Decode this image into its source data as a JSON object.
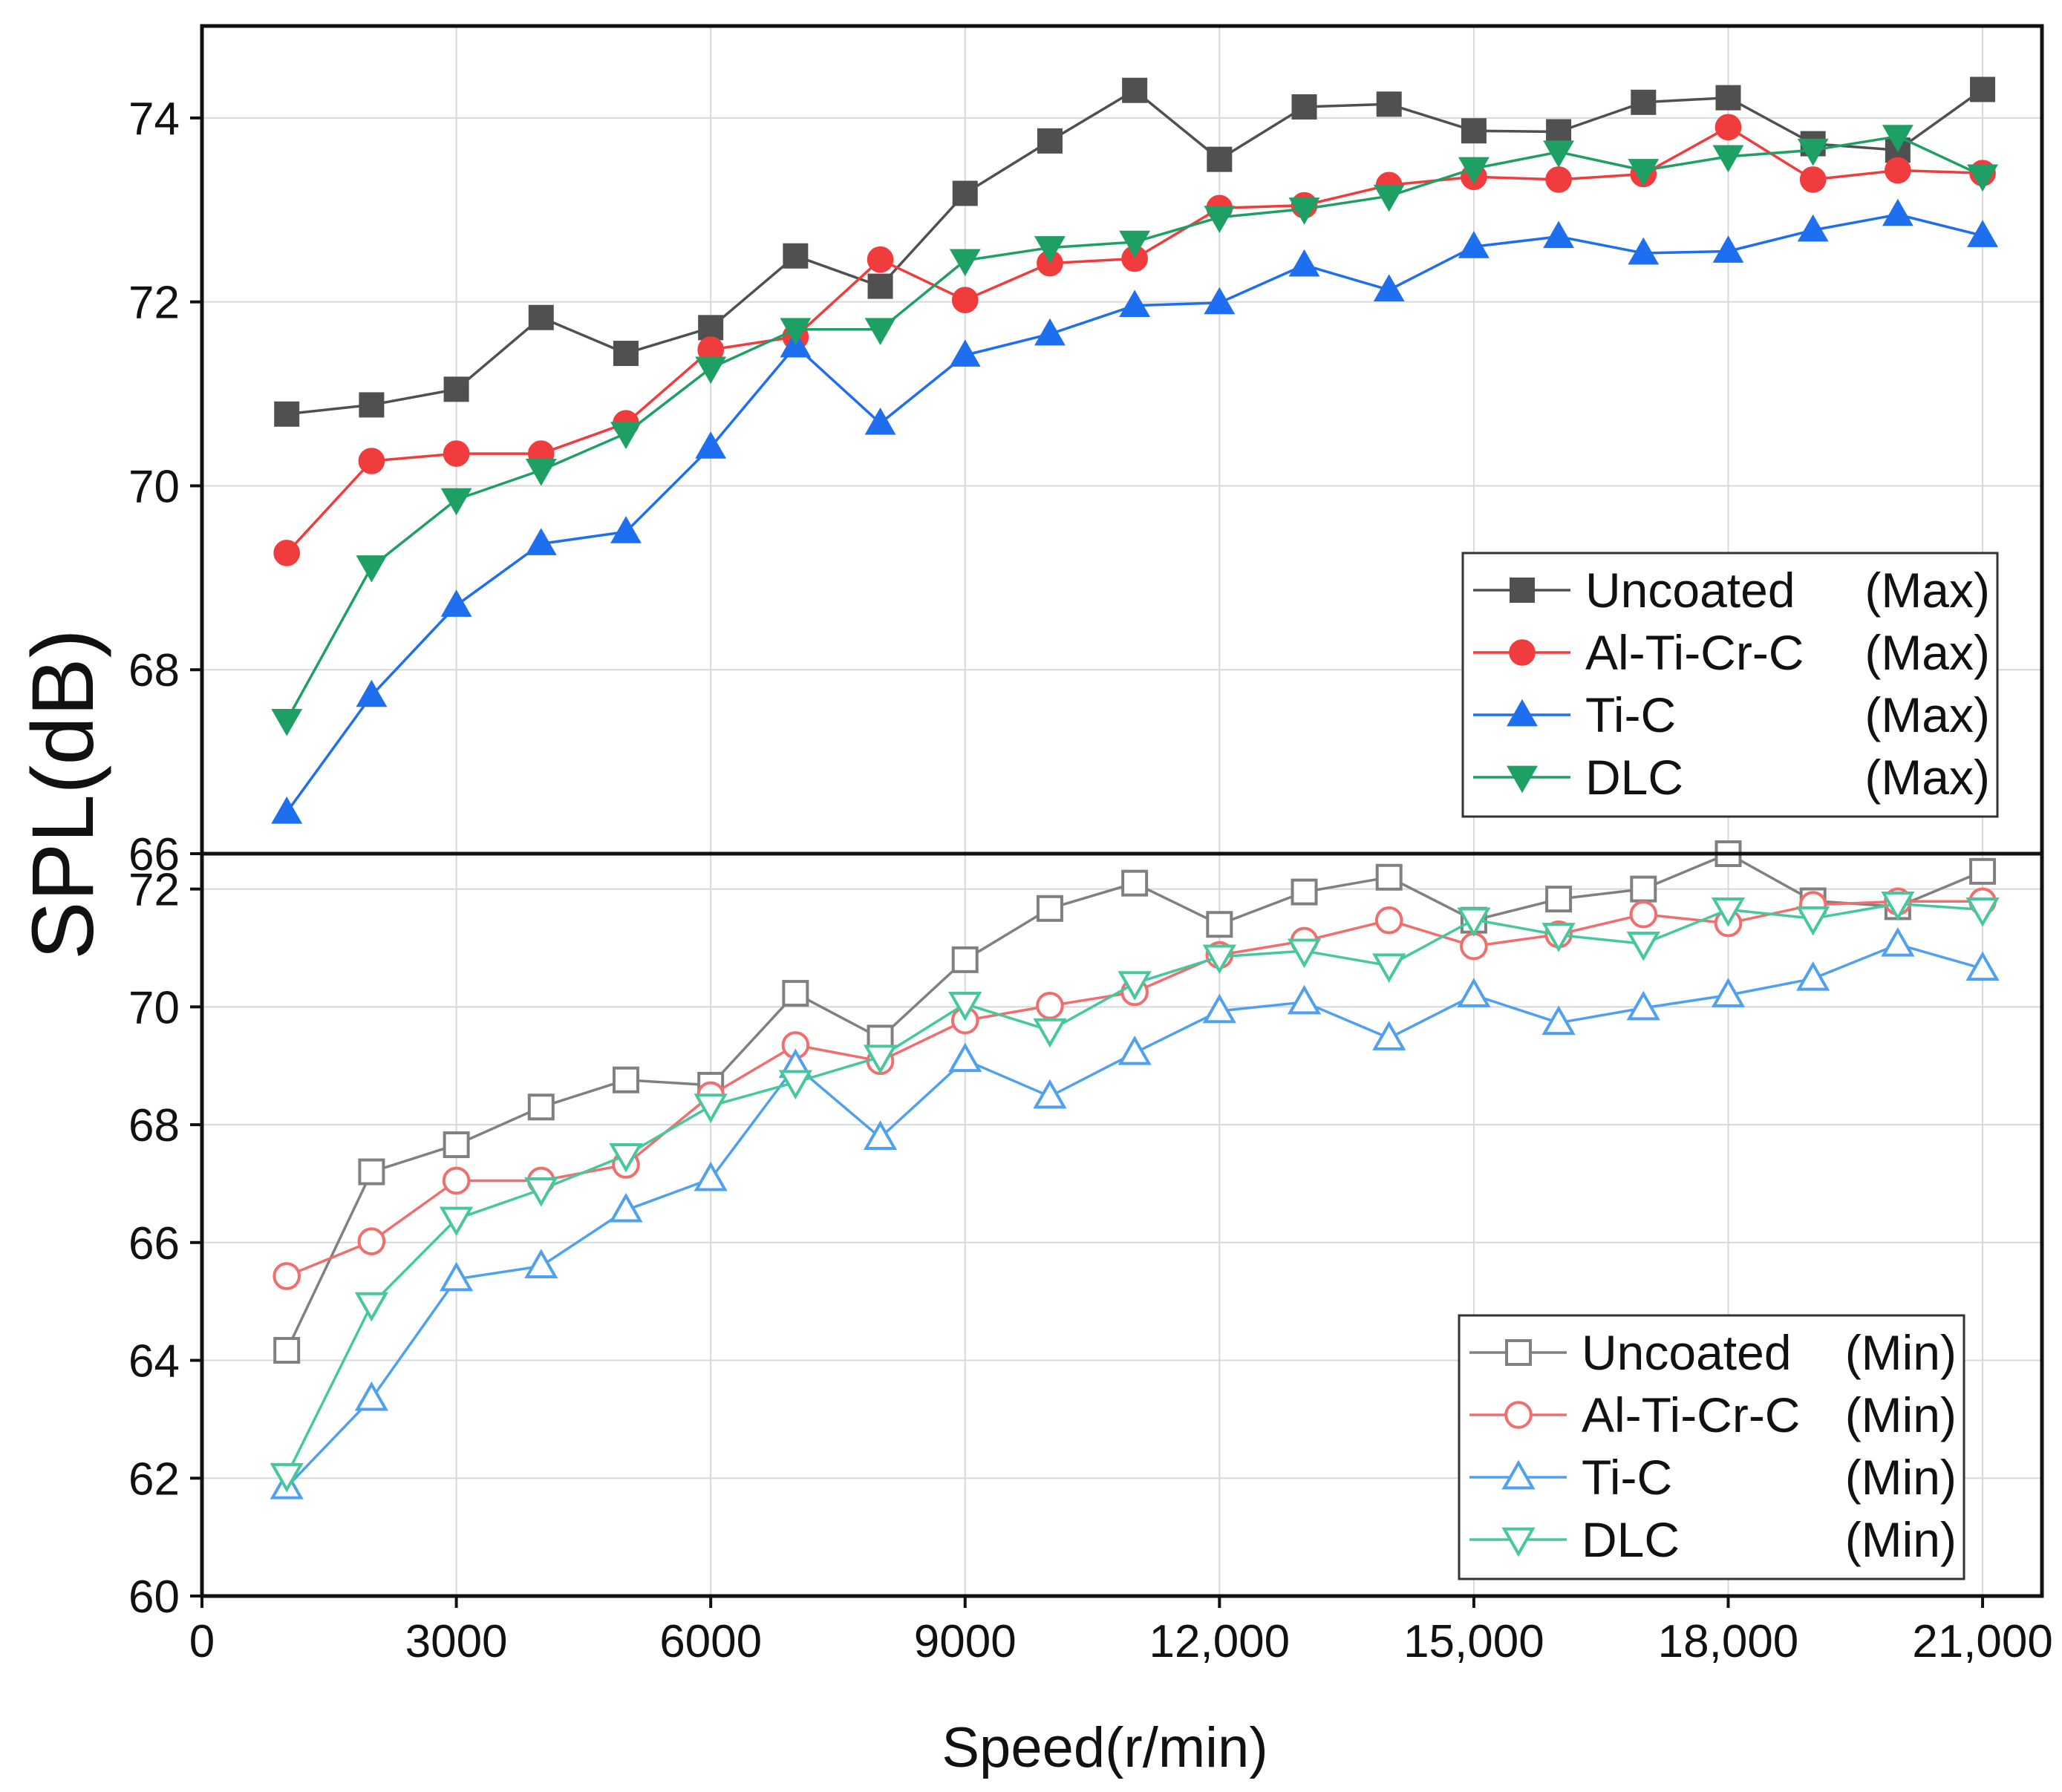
{
  "chart_data": {
    "type": "line",
    "x_title": "Speed(r/min)",
    "y_title": "SPL(dB)",
    "x_ticks": [
      {
        "value": 0,
        "label": "0"
      },
      {
        "value": 3000,
        "label": "3000"
      },
      {
        "value": 6000,
        "label": "6000"
      },
      {
        "value": 9000,
        "label": "9000"
      },
      {
        "value": 12000,
        "label": "12,000"
      },
      {
        "value": 15000,
        "label": "15,000"
      },
      {
        "value": 18000,
        "label": "18,000"
      },
      {
        "value": 21000,
        "label": "21,000"
      }
    ],
    "xlim": [
      0,
      21700
    ],
    "x": [
      1000,
      2000,
      3000,
      4000,
      5000,
      6000,
      7000,
      8000,
      9000,
      10000,
      11000,
      12000,
      13000,
      14000,
      15000,
      16000,
      17000,
      18000,
      19000,
      20000,
      21000
    ],
    "panels": [
      {
        "id": "max",
        "ylim": [
          66,
          75
        ],
        "y_ticks": [
          66,
          68,
          70,
          72,
          74
        ],
        "y_tick_labels": [
          "66",
          "68",
          "70",
          "72",
          "74"
        ],
        "legend_position": "bottom-right",
        "series": [
          {
            "name": "Uncoated",
            "tag": "(Max)",
            "color": "#505050",
            "marker": "square",
            "filled": true,
            "values": [
              70.78,
              70.88,
              71.05,
              71.83,
              71.44,
              71.72,
              72.5,
              72.17,
              73.18,
              73.75,
              74.3,
              73.55,
              74.12,
              74.15,
              73.86,
              73.85,
              74.17,
              74.22,
              73.72,
              73.65,
              74.31
            ]
          },
          {
            "name": "Al-Ti-Cr-C",
            "tag": "(Max)",
            "color": "#f03c3c",
            "marker": "circle",
            "filled": true,
            "values": [
              69.27,
              70.27,
              70.35,
              70.35,
              70.68,
              71.48,
              71.62,
              72.46,
              72.02,
              72.42,
              72.47,
              73.02,
              73.05,
              73.27,
              73.36,
              73.33,
              73.39,
              73.9,
              73.33,
              73.43,
              73.4
            ]
          },
          {
            "name": "Ti-C",
            "tag": "(Max)",
            "color": "#1e6ef0",
            "marker": "triangle-up",
            "filled": true,
            "values": [
              66.45,
              67.72,
              68.7,
              69.37,
              69.5,
              70.42,
              71.52,
              70.68,
              71.42,
              71.65,
              71.96,
              71.99,
              72.4,
              72.13,
              72.6,
              72.71,
              72.53,
              72.55,
              72.78,
              72.95,
              72.72
            ]
          },
          {
            "name": "DLC",
            "tag": "(Max)",
            "color": "#1ea064",
            "marker": "triangle-down",
            "filled": true,
            "values": [
              67.45,
              69.12,
              69.85,
              70.17,
              70.57,
              71.28,
              71.7,
              71.7,
              72.45,
              72.59,
              72.65,
              72.92,
              73.01,
              73.15,
              73.45,
              73.63,
              73.43,
              73.58,
              73.65,
              73.8,
              73.37
            ]
          }
        ]
      },
      {
        "id": "min",
        "ylim": [
          60,
          72.6
        ],
        "y_ticks": [
          60,
          62,
          64,
          66,
          68,
          70,
          72
        ],
        "y_tick_labels": [
          "60",
          "62",
          "64",
          "66",
          "68",
          "70",
          "72"
        ],
        "legend_position": "bottom-right",
        "series": [
          {
            "name": "Uncoated",
            "tag": "(Min)",
            "color": "#808080",
            "marker": "square",
            "filled": false,
            "values": [
              64.17,
              67.2,
              67.66,
              68.3,
              68.76,
              68.67,
              70.23,
              69.47,
              70.8,
              71.67,
              72.1,
              71.4,
              71.95,
              72.2,
              71.47,
              71.83,
              72.0,
              72.6,
              71.8,
              71.7,
              72.3
            ]
          },
          {
            "name": "Al-Ti-Cr-C",
            "tag": "(Min)",
            "color": "#f06e6e",
            "marker": "circle",
            "filled": false,
            "values": [
              65.43,
              66.02,
              67.05,
              67.05,
              67.32,
              68.5,
              69.35,
              69.08,
              69.77,
              70.02,
              70.25,
              70.88,
              71.12,
              71.47,
              71.03,
              71.23,
              71.57,
              71.42,
              71.73,
              71.79,
              71.79
            ]
          },
          {
            "name": "Ti-C",
            "tag": "(Min)",
            "color": "#50a0f0",
            "marker": "triangle-up",
            "filled": false,
            "values": [
              61.85,
              63.35,
              65.38,
              65.6,
              66.55,
              67.08,
              69.0,
              67.78,
              69.1,
              68.48,
              69.22,
              69.93,
              70.08,
              69.47,
              70.2,
              69.73,
              69.98,
              70.2,
              70.48,
              71.06,
              70.65
            ]
          },
          {
            "name": "DLC",
            "tag": "(Min)",
            "color": "#46c89a",
            "marker": "triangle-down",
            "filled": false,
            "values": [
              62.05,
              64.95,
              66.4,
              66.9,
              67.48,
              68.32,
              68.72,
              69.15,
              70.05,
              69.6,
              70.4,
              70.85,
              70.95,
              70.7,
              71.48,
              71.22,
              71.07,
              71.65,
              71.5,
              71.75,
              71.65
            ]
          }
        ]
      }
    ]
  }
}
